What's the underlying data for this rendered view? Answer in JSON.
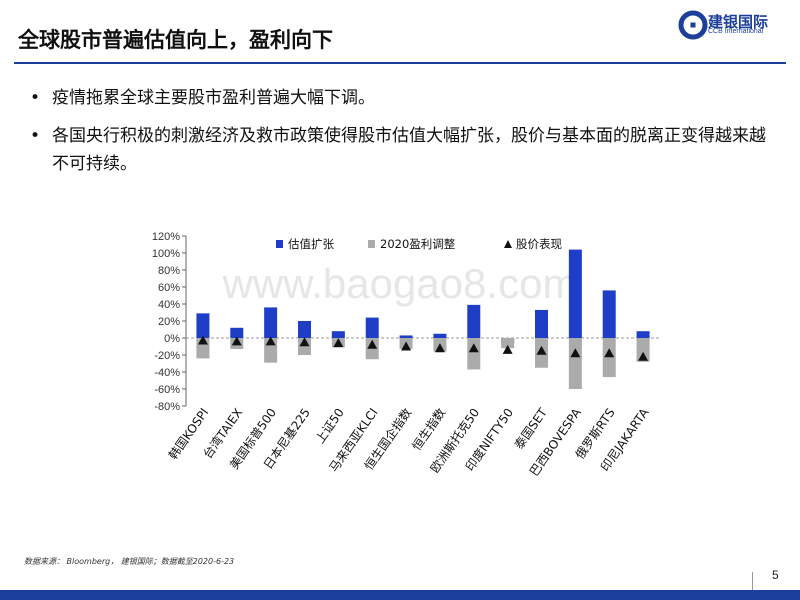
{
  "header": {
    "title": "全球股市普遍估值向上，盈利向下",
    "logo_cn": "建银国际",
    "logo_en": "CCB International"
  },
  "bullets": [
    "疫情拖累全球主要股市盈利普遍大幅下调。",
    "各国央行积极的刺激经济及救市政策使得股市估值大幅扩张，股价与基本面的脱离正变得越来越不可持续。"
  ],
  "chart_data": {
    "type": "bar",
    "categories": [
      "韩国KOSPI",
      "台湾TAIEX",
      "美国标普500",
      "日本尼基225",
      "上证50",
      "马来西亚KLCI",
      "恒生国企指数",
      "恒生指数",
      "欧洲斯托克50",
      "印度NIFTY50",
      "泰国SET",
      "巴西BOVESPA",
      "俄罗斯RTS",
      "印尼JAKARTA"
    ],
    "series": [
      {
        "name": "估值扩张",
        "kind": "bar",
        "color": "#1f3ec8",
        "values": [
          29,
          12,
          36,
          20,
          8,
          24,
          3,
          5,
          39,
          -6,
          33,
          104,
          56,
          8
        ]
      },
      {
        "name": "2020盈利调整",
        "kind": "bar",
        "color": "#ababab",
        "values": [
          -24,
          -13,
          -29,
          -20,
          -11,
          -25,
          -13,
          -16,
          -37,
          -12,
          -35,
          -60,
          -46,
          -28
        ]
      },
      {
        "name": "股价表现",
        "kind": "marker",
        "color": "#111111",
        "values": [
          -3,
          -4,
          -4,
          -5,
          -6,
          -8,
          -10,
          -12,
          -12,
          -14,
          -15,
          -18,
          -18,
          -22
        ]
      }
    ],
    "ylim": [
      -80,
      120
    ],
    "yticks": [
      "-80%",
      "-60%",
      "-40%",
      "-20%",
      "0%",
      "20%",
      "40%",
      "60%",
      "80%",
      "100%",
      "120%"
    ],
    "legend_position": "top",
    "grid": false
  },
  "watermark": "www.baogao8.com",
  "source": "数据来源： Bloomberg， 建银国际；数据截至2020-6-23",
  "page_number": "5"
}
